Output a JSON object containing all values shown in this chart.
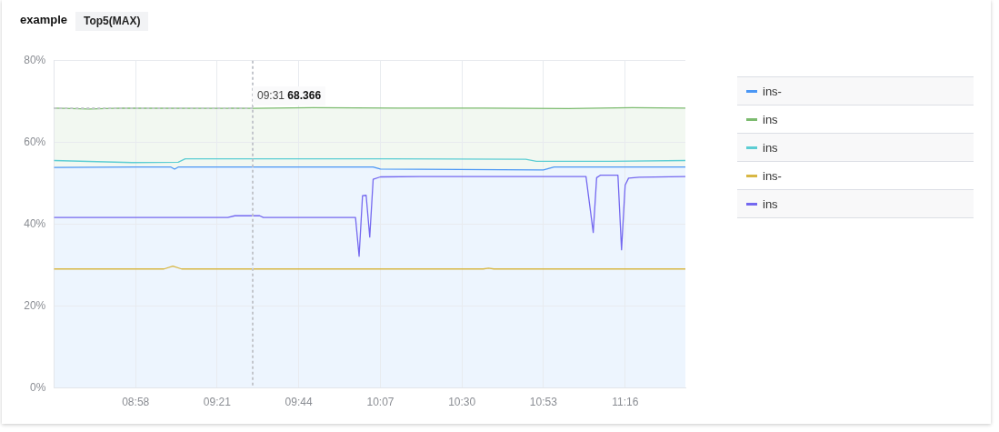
{
  "chart_data": {
    "type": "line",
    "title": "example",
    "subtitle": "Top5(MAX)",
    "xlim": [
      8.583,
      11.55
    ],
    "xticks": [
      {
        "value": 8.967,
        "label": "08:58"
      },
      {
        "value": 9.35,
        "label": "09:21"
      },
      {
        "value": 9.733,
        "label": "09:44"
      },
      {
        "value": 10.117,
        "label": "10:07"
      },
      {
        "value": 10.5,
        "label": "10:30"
      },
      {
        "value": 10.883,
        "label": "10:53"
      },
      {
        "value": 11.267,
        "label": "11:16"
      }
    ],
    "ylim": [
      0,
      80
    ],
    "yticks": [
      {
        "value": 0,
        "label": "0%"
      },
      {
        "value": 20,
        "label": "20%"
      },
      {
        "value": 40,
        "label": "40%"
      },
      {
        "value": 60,
        "label": "60%"
      },
      {
        "value": 80,
        "label": "80%"
      }
    ],
    "grid": true,
    "legend": "right",
    "ref_lines": [
      {
        "axis": "x",
        "value": 9.517,
        "color": "#c3c6cc",
        "line_style": "dashed"
      }
    ],
    "annotations": [
      {
        "text": "09:31 68.366",
        "x": 9.517,
        "y": 68.366
      }
    ],
    "series": [
      {
        "name": "ins-",
        "color": "#4b97f5",
        "type": "area",
        "x": [
          8.583,
          8.967,
          9.133,
          9.15,
          9.167,
          10.083,
          10.117,
          10.883,
          10.933,
          11.55
        ],
        "values": [
          53.9,
          54,
          54,
          53.5,
          54,
          54,
          53.5,
          53.3,
          54,
          54
        ]
      },
      {
        "name": "ins",
        "color": "#7cbb6f",
        "type": "area",
        "x": [
          8.583,
          8.75,
          8.9,
          9.517,
          9.8,
          10.2,
          10.6,
          11,
          11.3,
          11.55
        ],
        "values": [
          68.4,
          68.2,
          68.4,
          68.366,
          68.5,
          68.4,
          68.4,
          68.3,
          68.5,
          68.4
        ]
      },
      {
        "name": "ins",
        "color": "#5ccdd3",
        "x": [
          8.583,
          8.95,
          9.167,
          9.2,
          10.15,
          10.8,
          10.85,
          11.2,
          11.55
        ],
        "values": [
          55.6,
          55.1,
          55.2,
          56,
          56,
          55.9,
          55.4,
          55.4,
          55.6
        ]
      },
      {
        "name": "ins-",
        "color": "#d8b744",
        "x": [
          8.583,
          9.1,
          9.142,
          9.183,
          10.6,
          10.625,
          10.65,
          11.55
        ],
        "values": [
          29.1,
          29.1,
          29.8,
          29.1,
          29.1,
          29.3,
          29.1,
          29.1
        ]
      },
      {
        "name": "ins",
        "color": "#7468f0",
        "x": [
          8.583,
          9.4,
          9.433,
          9.55,
          9.567,
          10,
          10.017,
          10.033,
          10.05,
          10.067,
          10.083,
          10.117,
          10.3,
          11.083,
          11.117,
          11.133,
          11.15,
          11.233,
          11.25,
          11.267,
          11.283,
          11.333,
          11.55
        ],
        "values": [
          41.7,
          41.7,
          42.1,
          42.1,
          41.7,
          41.7,
          32.2,
          47,
          47.1,
          36.9,
          51,
          51.6,
          51.7,
          51.7,
          38,
          51.4,
          52,
          52,
          33.8,
          49.6,
          51.3,
          51.5,
          51.7
        ]
      }
    ]
  }
}
